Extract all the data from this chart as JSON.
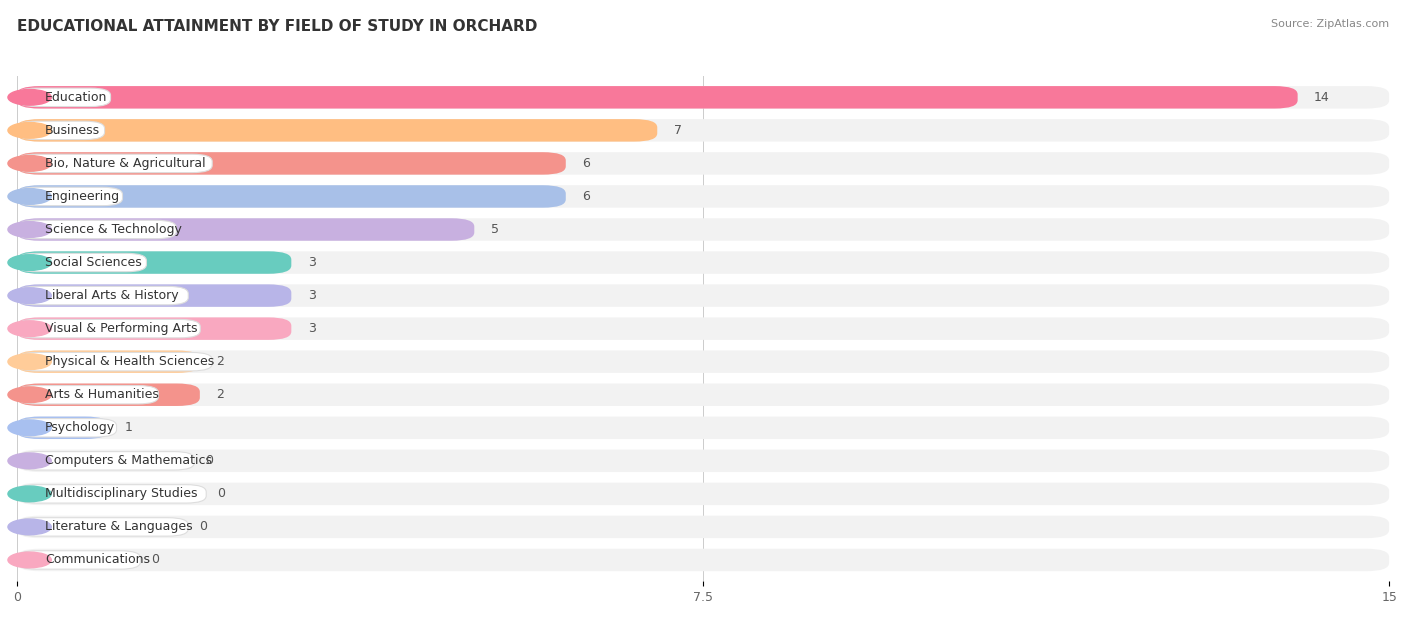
{
  "title": "EDUCATIONAL ATTAINMENT BY FIELD OF STUDY IN ORCHARD",
  "source": "Source: ZipAtlas.com",
  "categories": [
    "Education",
    "Business",
    "Bio, Nature & Agricultural",
    "Engineering",
    "Science & Technology",
    "Social Sciences",
    "Liberal Arts & History",
    "Visual & Performing Arts",
    "Physical & Health Sciences",
    "Arts & Humanities",
    "Psychology",
    "Computers & Mathematics",
    "Multidisciplinary Studies",
    "Literature & Languages",
    "Communications"
  ],
  "values": [
    14,
    7,
    6,
    6,
    5,
    3,
    3,
    3,
    2,
    2,
    1,
    0,
    0,
    0,
    0
  ],
  "bar_colors": [
    "#F8789A",
    "#FFBE82",
    "#F4938C",
    "#A8C0E8",
    "#C8B0E0",
    "#68CCBF",
    "#B8B5E8",
    "#F9A8C0",
    "#FFCC99",
    "#F4938C",
    "#A8C0F0",
    "#C8B0E0",
    "#68CCBF",
    "#B8B5E8",
    "#F9A8C0"
  ],
  "xlim": [
    0,
    15
  ],
  "xticks": [
    0,
    7.5,
    15
  ],
  "background_color": "#ffffff",
  "bar_background_color": "#f2f2f2",
  "title_fontsize": 11,
  "label_fontsize": 9,
  "value_fontsize": 9
}
